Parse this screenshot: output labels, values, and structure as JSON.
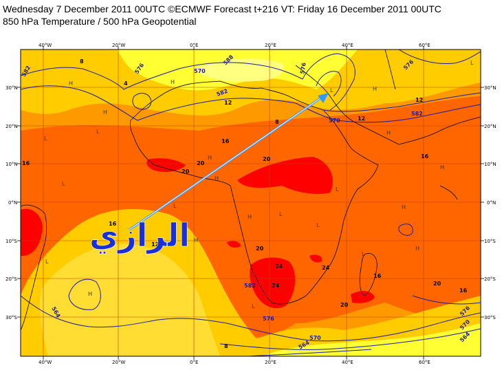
{
  "header": {
    "line1": "Wednesday 7 December 2011 00UTC ©ECMWF Forecast t+216 VT: Friday 16 December 2011 00UTC",
    "line2": "850 hPa Temperature / 500 hPa Geopotential"
  },
  "axes": {
    "lon_labels": [
      "40°W",
      "20°W",
      "0°E",
      "20°E",
      "40°E",
      "60°E"
    ],
    "lat_labels": [
      "30°N",
      "20°N",
      "10°N",
      "0°N",
      "10°S",
      "20°S",
      "30°S"
    ]
  },
  "contour_labels": {
    "geopotential": [
      "582",
      "576",
      "570",
      "582",
      "588",
      "576",
      "570",
      "582",
      "576",
      "582",
      "564",
      "576",
      "564",
      "570",
      "576",
      "570",
      "564"
    ],
    "temperature": [
      "8",
      "12",
      "16",
      "20",
      "20",
      "20",
      "16",
      "16",
      "12",
      "16",
      "20",
      "24",
      "20",
      "24",
      "24",
      "20",
      "16",
      "16",
      "12",
      "12",
      "8",
      "8",
      "4"
    ]
  },
  "pressure_marks": [
    "H",
    "H",
    "H",
    "H",
    "H",
    "L",
    "L",
    "L",
    "L",
    "H",
    "H",
    "L",
    "L",
    "L",
    "L",
    "H",
    "H",
    "H",
    "H",
    "L",
    "H",
    "L",
    "L",
    "L",
    "H"
  ],
  "watermark": "الرازي",
  "colors": {
    "band_0_4": "#ffff80",
    "band_4_8": "#ffff33",
    "band_8_16": "#ffcc00",
    "band_16_20": "#ff9900",
    "band_20_24": "#ff6600",
    "band_24_plus": "#ff0000",
    "geopotential_line": "#1a1aa0",
    "arrow": "#3399ff",
    "watermark": "#1a2fd6"
  }
}
